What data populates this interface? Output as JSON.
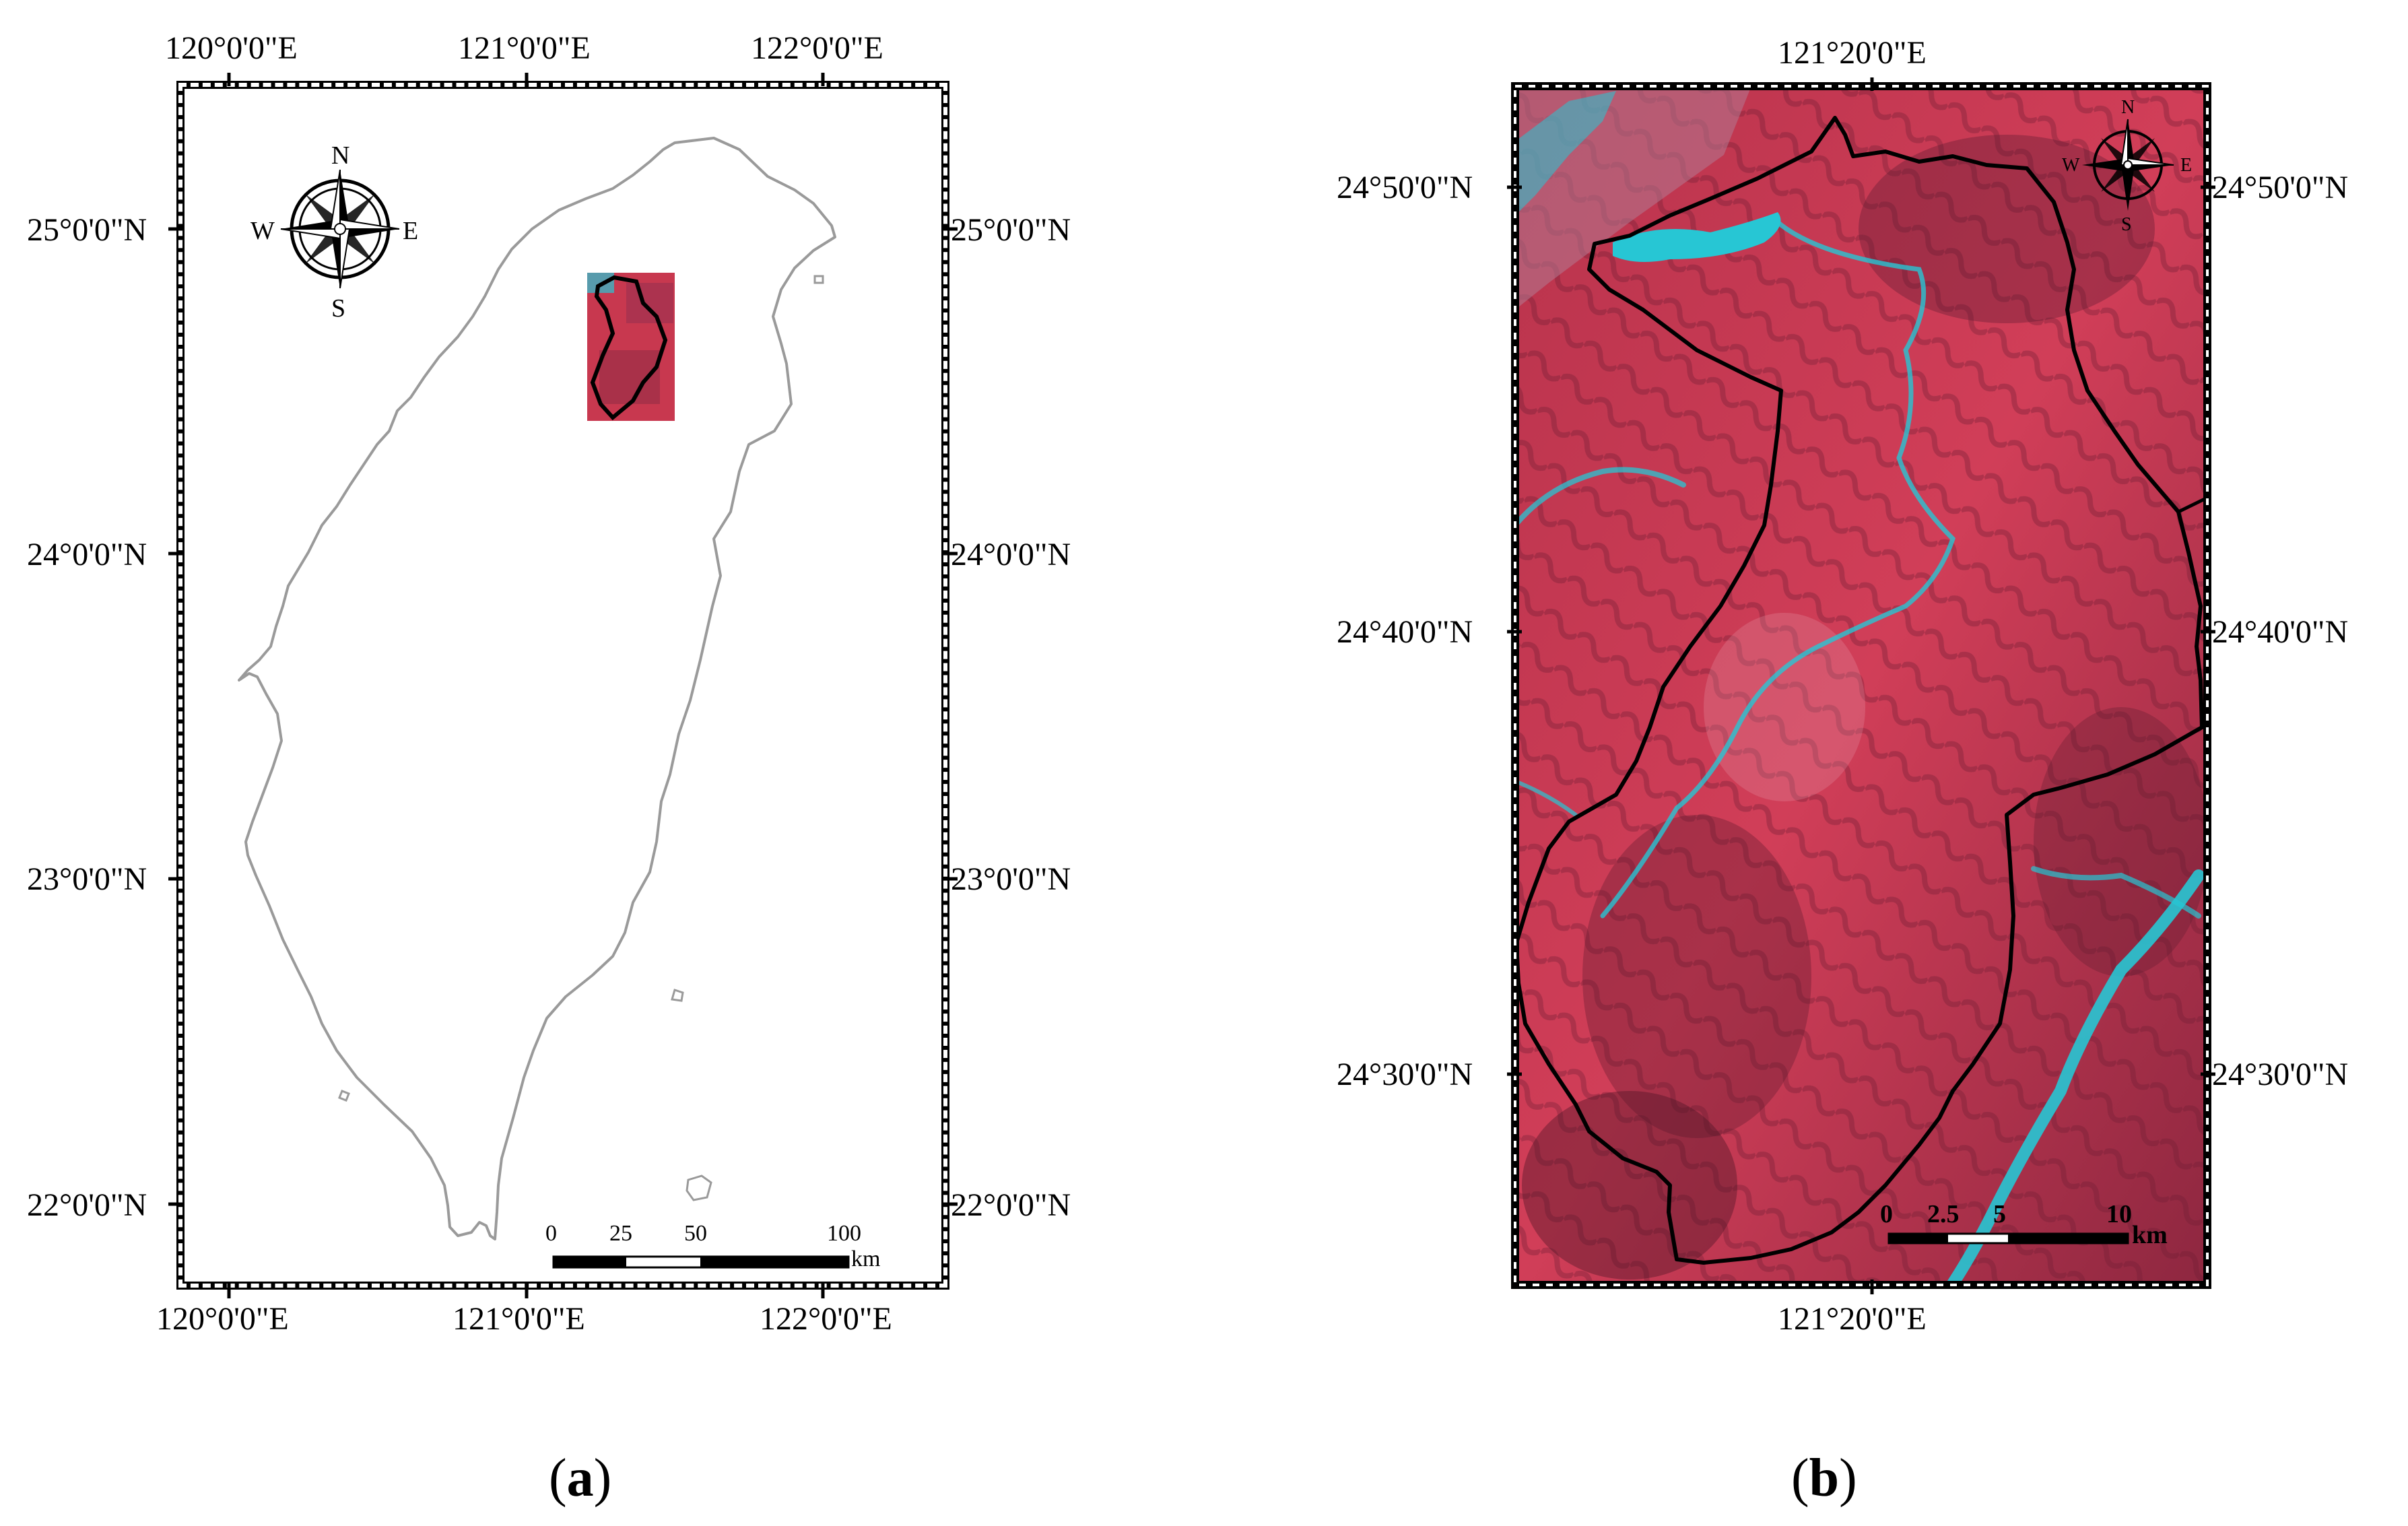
{
  "map_a": {
    "top_lon_labels": [
      "120°0'0\"E",
      "121°0'0\"E",
      "122°0'0\"E"
    ],
    "bottom_lon_labels": [
      "120°0'0\"E",
      "121°0'0\"E",
      "122°0'0\"E"
    ],
    "left_lat_labels": [
      "25°0'0\"N",
      "24°0'0\"N",
      "23°0'0\"N",
      "22°0'0\"N"
    ],
    "right_lat_labels": [
      "25°0'0\"N",
      "24°0'0\"N",
      "23°0'0\"N",
      "22°0'0\"N"
    ],
    "compass": {
      "n": "N",
      "s": "S",
      "e": "E",
      "w": "W"
    },
    "scale_bar": {
      "ticks": [
        "0",
        "25",
        "50",
        "100"
      ],
      "unit": "km"
    },
    "caption": {
      "open": "(",
      "letter": "a",
      "close": ")"
    }
  },
  "map_b": {
    "top_lon_label": "121°20'0\"E",
    "bottom_lon_label": "121°20'0\"E",
    "left_lat_labels": [
      "24°50'0\"N",
      "24°40'0\"N",
      "24°30'0\"N"
    ],
    "right_lat_labels": [
      "24°50'0\"N",
      "24°40'0\"N",
      "24°30'0\"N"
    ],
    "compass": {
      "n": "N",
      "s": "S",
      "e": "E",
      "w": "W"
    },
    "scale_bar": {
      "ticks": [
        "0",
        "2.5",
        "5",
        "10"
      ],
      "unit": "km"
    },
    "caption": {
      "open": "(",
      "letter": "b",
      "close": ")"
    }
  },
  "colors": {
    "imagery_base": "#c8384f",
    "imagery_dark": "#7a2038",
    "water": "#27c6d4",
    "coastline": "#9a9a9a",
    "boundary": "#000000"
  }
}
